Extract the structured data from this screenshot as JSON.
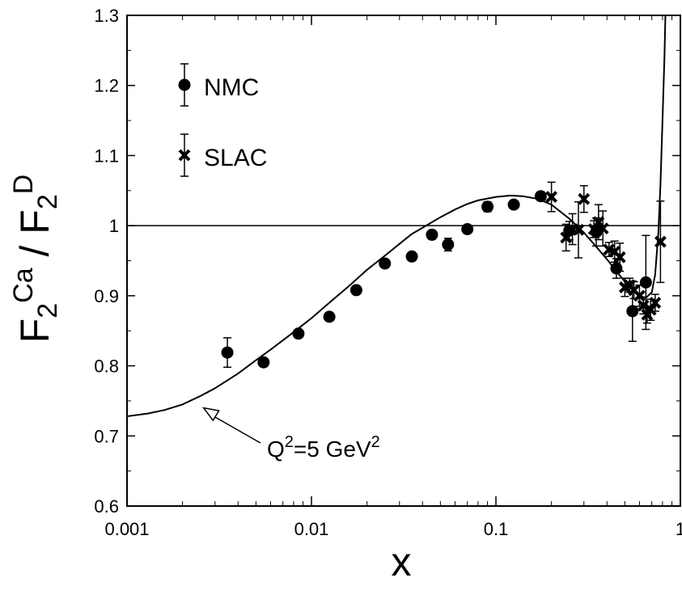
{
  "chart_data": {
    "type": "scatter",
    "x_scale": "log",
    "xlim": [
      0.001,
      1
    ],
    "ylim": [
      0.6,
      1.3
    ],
    "xlabel": "x",
    "ylabel": {
      "main1": "F",
      "sub1": "2",
      "sup1": "Ca",
      "slash": " / ",
      "main2": "F",
      "sub2": "2",
      "sup2": "D"
    },
    "x_ticks": [
      {
        "value": 0.001,
        "label": "0.001"
      },
      {
        "value": 0.01,
        "label": "0.01"
      },
      {
        "value": 0.1,
        "label": "0.1"
      },
      {
        "value": 1,
        "label": "1"
      }
    ],
    "y_ticks": [
      {
        "value": 0.6,
        "label": "0.6"
      },
      {
        "value": 0.7,
        "label": "0.7"
      },
      {
        "value": 0.8,
        "label": "0.8"
      },
      {
        "value": 0.9,
        "label": "0.9"
      },
      {
        "value": 1.0,
        "label": "1"
      },
      {
        "value": 1.1,
        "label": "1.1"
      },
      {
        "value": 1.2,
        "label": "1.2"
      },
      {
        "value": 1.3,
        "label": "1.3"
      }
    ],
    "reference_line": 1.0,
    "grid": false,
    "legend_position": "top-left",
    "series": [
      {
        "name": "NMC",
        "marker": "circle",
        "points": [
          {
            "x": 0.0035,
            "y": 0.819,
            "err": 0.021
          },
          {
            "x": 0.0055,
            "y": 0.805,
            "err": 0.006
          },
          {
            "x": 0.0085,
            "y": 0.846,
            "err": 0.005
          },
          {
            "x": 0.0125,
            "y": 0.87,
            "err": 0.005
          },
          {
            "x": 0.0175,
            "y": 0.908,
            "err": 0.005
          },
          {
            "x": 0.025,
            "y": 0.946,
            "err": 0.005
          },
          {
            "x": 0.035,
            "y": 0.956,
            "err": 0.005
          },
          {
            "x": 0.045,
            "y": 0.987,
            "err": 0.006
          },
          {
            "x": 0.055,
            "y": 0.973,
            "err": 0.009
          },
          {
            "x": 0.07,
            "y": 0.995,
            "err": 0.005
          },
          {
            "x": 0.09,
            "y": 1.027,
            "err": 0.007
          },
          {
            "x": 0.125,
            "y": 1.03,
            "err": 0.005
          },
          {
            "x": 0.175,
            "y": 1.042,
            "err": 0.006
          },
          {
            "x": 0.25,
            "y": 0.993,
            "err": 0.013
          },
          {
            "x": 0.35,
            "y": 0.991,
            "err": 0.02
          },
          {
            "x": 0.45,
            "y": 0.939,
            "err": 0.014
          },
          {
            "x": 0.55,
            "y": 0.878,
            "err": 0.043
          },
          {
            "x": 0.65,
            "y": 0.919,
            "err": 0.067
          }
        ]
      },
      {
        "name": "SLAC",
        "marker": "x",
        "points": [
          {
            "x": 0.2,
            "y": 1.041,
            "err": 0.021
          },
          {
            "x": 0.24,
            "y": 0.983,
            "err": 0.019
          },
          {
            "x": 0.26,
            "y": 0.995,
            "err": 0.022
          },
          {
            "x": 0.28,
            "y": 0.994,
            "err": 0.04
          },
          {
            "x": 0.3,
            "y": 1.038,
            "err": 0.019
          },
          {
            "x": 0.34,
            "y": 0.995,
            "err": 0.012
          },
          {
            "x": 0.36,
            "y": 1.005,
            "err": 0.025
          },
          {
            "x": 0.38,
            "y": 0.996,
            "err": 0.025
          },
          {
            "x": 0.41,
            "y": 0.966,
            "err": 0.01
          },
          {
            "x": 0.44,
            "y": 0.963,
            "err": 0.015
          },
          {
            "x": 0.47,
            "y": 0.955,
            "err": 0.02
          },
          {
            "x": 0.5,
            "y": 0.912,
            "err": 0.013
          },
          {
            "x": 0.53,
            "y": 0.915,
            "err": 0.01
          },
          {
            "x": 0.56,
            "y": 0.908,
            "err": 0.012
          },
          {
            "x": 0.6,
            "y": 0.9,
            "err": 0.015
          },
          {
            "x": 0.63,
            "y": 0.886,
            "err": 0.012
          },
          {
            "x": 0.66,
            "y": 0.873,
            "err": 0.012
          },
          {
            "x": 0.69,
            "y": 0.88,
            "err": 0.015
          },
          {
            "x": 0.73,
            "y": 0.89,
            "err": 0.012
          },
          {
            "x": 0.78,
            "y": 0.977,
            "err": 0.058
          }
        ]
      }
    ],
    "legend_error_bar": 0.03,
    "curve": {
      "label": "Q2=5 GeV2",
      "label_parts": {
        "a": "Q",
        "b": "2",
        "c": "=5 GeV",
        "d": "2"
      },
      "points": [
        [
          0.001,
          0.728
        ],
        [
          0.0013,
          0.732
        ],
        [
          0.0016,
          0.737
        ],
        [
          0.002,
          0.745
        ],
        [
          0.0025,
          0.757
        ],
        [
          0.003,
          0.768
        ],
        [
          0.004,
          0.789
        ],
        [
          0.005,
          0.808
        ],
        [
          0.006,
          0.823
        ],
        [
          0.008,
          0.848
        ],
        [
          0.01,
          0.868
        ],
        [
          0.013,
          0.894
        ],
        [
          0.016,
          0.914
        ],
        [
          0.02,
          0.937
        ],
        [
          0.025,
          0.957
        ],
        [
          0.03,
          0.974
        ],
        [
          0.035,
          0.988
        ],
        [
          0.04,
          0.997
        ],
        [
          0.05,
          1.012
        ],
        [
          0.06,
          1.023
        ],
        [
          0.07,
          1.031
        ],
        [
          0.08,
          1.036
        ],
        [
          0.1,
          1.041
        ],
        [
          0.12,
          1.043
        ],
        [
          0.14,
          1.042
        ],
        [
          0.17,
          1.038
        ],
        [
          0.2,
          1.03
        ],
        [
          0.25,
          1.01
        ],
        [
          0.3,
          0.99
        ],
        [
          0.35,
          0.97
        ],
        [
          0.4,
          0.952
        ],
        [
          0.45,
          0.935
        ],
        [
          0.5,
          0.92
        ],
        [
          0.55,
          0.908
        ],
        [
          0.6,
          0.9
        ],
        [
          0.65,
          0.897
        ],
        [
          0.7,
          0.905
        ],
        [
          0.73,
          0.93
        ],
        [
          0.76,
          0.99
        ],
        [
          0.78,
          1.06
        ],
        [
          0.8,
          1.15
        ],
        [
          0.82,
          1.24
        ],
        [
          0.83,
          1.3
        ]
      ],
      "arrow_target": {
        "x": 0.0026,
        "y": 0.74
      }
    }
  }
}
